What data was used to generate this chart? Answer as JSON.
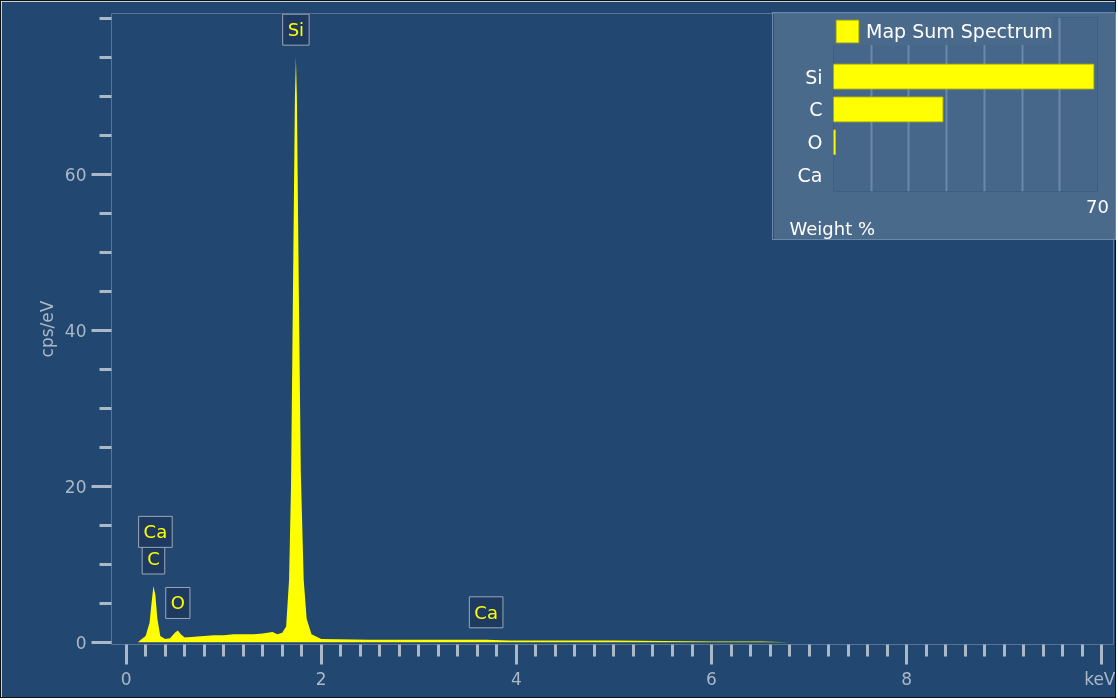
{
  "chart_data": [
    {
      "type": "area",
      "ylabel": "cps/eV",
      "xlim": [
        -0.15,
        10.12
      ],
      "ylim": [
        -0.3,
        80.6
      ],
      "xticks": [
        0,
        {
          "value": 0.2,
          "label": null
        },
        {
          "value": 0.4,
          "label": null
        },
        {
          "value": 0.6,
          "label": null
        },
        {
          "value": 0.8,
          "label": null
        },
        {
          "value": 1,
          "label": null
        },
        {
          "value": 1.2,
          "label": null
        },
        {
          "value": 1.4,
          "label": null
        },
        {
          "value": 1.6,
          "label": null
        },
        {
          "value": 1.8,
          "label": null
        },
        2,
        {
          "value": 2.2,
          "label": null
        },
        {
          "value": 2.4,
          "label": null
        },
        {
          "value": 2.6,
          "label": null
        },
        {
          "value": 2.8,
          "label": null
        },
        {
          "value": 3,
          "label": null
        },
        {
          "value": 3.2,
          "label": null
        },
        {
          "value": 3.4,
          "label": null
        },
        {
          "value": 3.6,
          "label": null
        },
        {
          "value": 3.8,
          "label": null
        },
        4,
        {
          "value": 4.2,
          "label": null
        },
        {
          "value": 4.4,
          "label": null
        },
        {
          "value": 4.6,
          "label": null
        },
        {
          "value": 4.8,
          "label": null
        },
        {
          "value": 5,
          "label": null
        },
        {
          "value": 5.2,
          "label": null
        },
        {
          "value": 5.4,
          "label": null
        },
        {
          "value": 5.6,
          "label": null
        },
        {
          "value": 5.8,
          "label": null
        },
        6,
        {
          "value": 6.2,
          "label": null
        },
        {
          "value": 6.4,
          "label": null
        },
        {
          "value": 6.6,
          "label": null
        },
        {
          "value": 6.8,
          "label": null
        },
        {
          "value": 7,
          "label": null
        },
        {
          "value": 7.2,
          "label": null
        },
        {
          "value": 7.4,
          "label": null
        },
        {
          "value": 7.6,
          "label": null
        },
        {
          "value": 7.8,
          "label": null
        },
        8,
        {
          "value": 8.2,
          "label": null
        },
        {
          "value": 8.4,
          "label": null
        },
        {
          "value": 8.6,
          "label": null
        },
        {
          "value": 8.8,
          "label": null
        },
        {
          "value": 9,
          "label": null
        },
        {
          "value": 9.2,
          "label": null
        },
        {
          "value": 9.4,
          "label": null
        },
        {
          "value": 9.6,
          "label": null
        },
        {
          "value": 9.8,
          "label": null
        },
        {
          "value": 10,
          "label": "keV"
        }
      ],
      "yticks": [
        0,
        {
          "value": 5,
          "label": null
        },
        {
          "value": 10,
          "label": null
        },
        {
          "value": 15,
          "label": null
        },
        20,
        {
          "value": 25,
          "label": null
        },
        {
          "value": 30,
          "label": null
        },
        {
          "value": 35,
          "label": null
        },
        40,
        {
          "value": 45,
          "label": null
        },
        {
          "value": 50,
          "label": null
        },
        {
          "value": 55,
          "label": null
        },
        60,
        {
          "value": 65,
          "label": null
        },
        {
          "value": 70,
          "label": null
        },
        {
          "value": 75,
          "label": null
        },
        {
          "value": 80,
          "label": null
        }
      ],
      "grid": false,
      "x": [
        0.12,
        0.15,
        0.2,
        0.24,
        0.26,
        0.28,
        0.3,
        0.32,
        0.35,
        0.4,
        0.45,
        0.5,
        0.53,
        0.56,
        0.6,
        0.7,
        0.8,
        0.9,
        1.0,
        1.1,
        1.2,
        1.3,
        1.4,
        1.5,
        1.55,
        1.6,
        1.64,
        1.67,
        1.69,
        1.71,
        1.73,
        1.74,
        1.75,
        1.77,
        1.79,
        1.82,
        1.85,
        1.9,
        2.0,
        2.5,
        3.0,
        3.5,
        3.69,
        4.0,
        5.0,
        6.0,
        6.5,
        6.8
      ],
      "series": [
        {
          "color": "#ffff00",
          "values": [
            0,
            0.3,
            0.8,
            2.5,
            5,
            7.2,
            6,
            3,
            0.8,
            0.4,
            0.5,
            1.2,
            1.5,
            1.0,
            0.6,
            0.7,
            0.8,
            0.9,
            0.9,
            1.0,
            1.0,
            1.0,
            1.1,
            1.3,
            1.0,
            1.2,
            2,
            8,
            20,
            45,
            70,
            75,
            70,
            45,
            22,
            8,
            3,
            1,
            0.4,
            0.3,
            0.3,
            0.3,
            0.3,
            0.2,
            0.2,
            0.1,
            0.1,
            0
          ]
        }
      ],
      "annotations": [
        {
          "text": "Si",
          "x": 1.74,
          "y": 75
        },
        {
          "text": "C",
          "x": 0.28,
          "y": 7.2
        },
        {
          "text": "Ca",
          "x": 0.3,
          "y": 6
        },
        {
          "text": "O",
          "x": 0.53,
          "y": 1.5
        },
        {
          "text": "Ca",
          "x": 3.69,
          "y": 0.3
        }
      ]
    },
    {
      "type": "bar",
      "orientation": "horizontal",
      "xlabel": "Weight %",
      "categories": [
        "Si",
        "C",
        "O",
        "Ca"
      ],
      "xlim": [
        0,
        70
      ],
      "xticks": [
        {
          "value": 0,
          "label": null
        },
        {
          "value": 10,
          "label": null
        },
        {
          "value": 20,
          "label": null
        },
        {
          "value": 30,
          "label": null
        },
        {
          "value": 40,
          "label": null
        },
        {
          "value": 50,
          "label": null
        },
        {
          "value": 60,
          "label": null
        },
        70
      ],
      "grid": "x",
      "legend": "top",
      "series": [
        {
          "name": "Map Sum Spectrum",
          "color": "#ffff00",
          "values": [
            69,
            29,
            0.5,
            null
          ]
        }
      ]
    }
  ]
}
